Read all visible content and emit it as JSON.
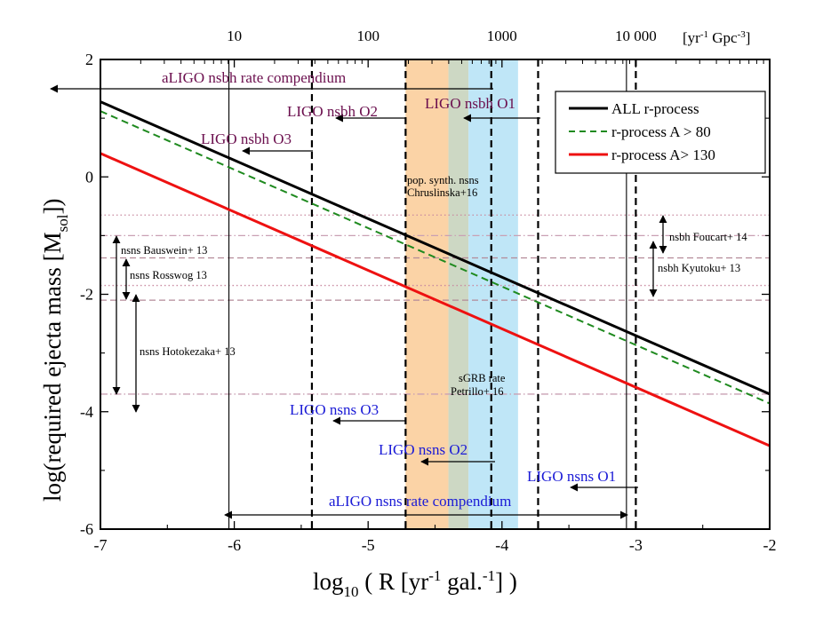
{
  "chart_data": {
    "type": "line",
    "xlabel_main": "log",
    "xlabel_sub": "10",
    "xlabel_rest_1": " ( R [yr",
    "xlabel_sup": "-1",
    "xlabel_rest_2": " gal.",
    "xlabel_sup2": "-1",
    "xlabel_rest_3": "] )",
    "ylabel_main": "log(required ejecta mass [M",
    "ylabel_sub": "sol",
    "ylabel_rest": "])",
    "top_axis_unit": "[yr-1 Gpc-3]",
    "top_axis_unit_parts": {
      "a": "[yr",
      "b": "-1",
      "c": " Gpc",
      "d": "-3",
      "e": "]"
    },
    "xlim": [
      -7,
      -2
    ],
    "ylim": [
      -6,
      2
    ],
    "x_ticks": [
      -7,
      -6,
      -5,
      -4,
      -3,
      -2
    ],
    "x_tick_labels": [
      "-7",
      "-6",
      "-5",
      "-4",
      "-3",
      "-2"
    ],
    "y_ticks": [
      -6,
      -4,
      -2,
      0,
      2
    ],
    "y_tick_labels": [
      "-6",
      "-4",
      "-2",
      "0",
      "2"
    ],
    "top_ticks": [
      {
        "x": -6.0,
        "label": "10"
      },
      {
        "x": -5.0,
        "label": "100"
      },
      {
        "x": -4.0,
        "label": "1000"
      },
      {
        "x": -3.0,
        "label": "10 000"
      }
    ],
    "series": [
      {
        "name": "ALL r-process",
        "color": "#000000",
        "style": "solid",
        "x": [
          -7,
          -2
        ],
        "y": [
          1.28,
          -3.7
        ]
      },
      {
        "name": "r-process A > 80",
        "color": "#1f8a1f",
        "style": "dashed",
        "x": [
          -7,
          -2
        ],
        "y": [
          1.12,
          -3.86
        ]
      },
      {
        "name": "r-process A> 130",
        "color": "#ee1111",
        "style": "solid",
        "x": [
          -7,
          -2
        ],
        "y": [
          0.4,
          -4.58
        ]
      }
    ],
    "bands": [
      {
        "from": -4.72,
        "to": -4.4,
        "color": "#fbd3a6"
      },
      {
        "from": -4.4,
        "to": -4.25,
        "color": "#cdd8c4"
      },
      {
        "from": -4.25,
        "to": -3.88,
        "color": "#bfe6f7"
      }
    ],
    "dashed_vlines": [
      -5.42,
      -4.72,
      -4.08,
      -3.73,
      -3.0
    ],
    "solid_vlines": [
      -6.04,
      -3.07
    ],
    "hlines": [
      {
        "y": -0.65,
        "color": "#c98aa0",
        "style": "dotted"
      },
      {
        "y": -1.0,
        "color": "#c9a0b4",
        "style": "dashdot"
      },
      {
        "y": -1.38,
        "color": "#b38a98",
        "style": "dashed"
      },
      {
        "y": -1.85,
        "color": "#c98aa0",
        "style": "dotted"
      },
      {
        "y": -2.1,
        "color": "#b38a98",
        "style": "dashed"
      },
      {
        "y": -3.7,
        "color": "#c9a0b4",
        "style": "dashdot"
      }
    ],
    "legend": {
      "placement": "top-right"
    },
    "annotations": {
      "aligo_nsbh": "aLIGO nsbh rate compendium",
      "ligo_nsbh_o1": "LIGO nsbh O1",
      "ligo_nsbh_o2": "LIGO nsbh O2",
      "ligo_nsbh_o3": "LIGO nsbh O3",
      "pop_synth_1": "pop. synth. nsns",
      "pop_synth_2": "Chruslinska+16",
      "sgrb_1": "sGRB rate",
      "sgrb_2": "Petrillo+ 16",
      "bauswein": "nsns Bauswein+ 13",
      "rosswog": "nsns Rosswog 13",
      "hotokezaka": "nsns Hotokezaka+ 13",
      "foucart": "nsbh Foucart+ 14",
      "kyutoku": "nsbh Kyutoku+ 13",
      "ligo_nsns_o1": "LIGO nsns O1",
      "ligo_nsns_o2": "LIGO nsns O2",
      "ligo_nsns_o3": "LIGO nsns O3",
      "aligo_nsns": "aLIGO nsns rate compendium"
    }
  }
}
